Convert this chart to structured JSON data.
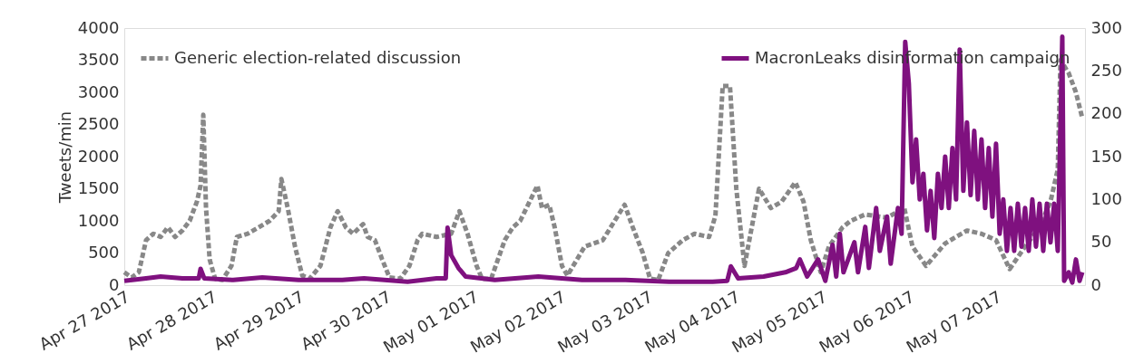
{
  "chart_data": {
    "type": "line",
    "ylabel": "Tweets/min",
    "xlim": [
      "2017-04-27T00:00",
      "2017-05-08T00:30"
    ],
    "xticks": [
      {
        "value": "2017-04-27T00:00",
        "label": "Apr 27 2017"
      },
      {
        "value": "2017-04-28T00:00",
        "label": "Apr 28 2017"
      },
      {
        "value": "2017-04-29T00:00",
        "label": "Apr 29 2017"
      },
      {
        "value": "2017-04-30T00:00",
        "label": "Apr 30 2017"
      },
      {
        "value": "2017-05-01T00:00",
        "label": "May 01 2017"
      },
      {
        "value": "2017-05-02T00:00",
        "label": "May 02 2017"
      },
      {
        "value": "2017-05-03T00:00",
        "label": "May 03 2017"
      },
      {
        "value": "2017-05-04T00:00",
        "label": "May 04 2017"
      },
      {
        "value": "2017-05-05T00:00",
        "label": "May 05 2017"
      },
      {
        "value": "2017-05-06T00:00",
        "label": "May 06 2017"
      },
      {
        "value": "2017-05-07T00:00",
        "label": "May 07 2017"
      }
    ],
    "ylim": [
      0,
      4000
    ],
    "yticks": [
      0,
      500,
      1000,
      1500,
      2000,
      2500,
      3000,
      3500,
      4000
    ],
    "y2lim": [
      0,
      300
    ],
    "y2ticks": [
      0,
      50,
      100,
      150,
      200,
      250,
      300
    ],
    "grid": false,
    "legend": "top",
    "marker": "none",
    "series": [
      {
        "name": "Generic election-related discussion",
        "color": "#888888",
        "line_style": "dashed",
        "x": [
          "2017-04-27T00:00",
          "2017-04-27T02:00",
          "2017-04-27T04:00",
          "2017-04-27T06:00",
          "2017-04-27T08:00",
          "2017-04-27T10:00",
          "2017-04-27T12:00",
          "2017-04-27T14:00",
          "2017-04-27T16:00",
          "2017-04-27T18:00",
          "2017-04-27T20:00",
          "2017-04-27T21:00",
          "2017-04-27T21:45",
          "2017-04-27T22:30",
          "2017-04-27T23:30",
          "2017-04-28T01:00",
          "2017-04-28T03:00",
          "2017-04-28T05:30",
          "2017-04-28T07:00",
          "2017-04-28T10:00",
          "2017-04-28T13:00",
          "2017-04-28T16:00",
          "2017-04-28T18:30",
          "2017-04-28T19:15",
          "2017-04-28T21:00",
          "2017-04-28T23:00",
          "2017-04-29T01:00",
          "2017-04-29T03:00",
          "2017-04-29T06:00",
          "2017-04-29T08:45",
          "2017-04-29T10:45",
          "2017-04-29T13:00",
          "2017-04-29T15:00",
          "2017-04-29T17:45",
          "2017-04-29T19:00",
          "2017-04-29T21:00",
          "2017-04-29T23:00",
          "2017-04-30T01:00",
          "2017-04-30T04:00",
          "2017-04-30T06:30",
          "2017-04-30T08:45",
          "2017-04-30T10:00",
          "2017-04-30T14:00",
          "2017-04-30T18:00",
          "2017-04-30T20:15",
          "2017-04-30T22:30",
          "2017-05-01T01:00",
          "2017-05-01T02:30",
          "2017-05-01T05:00",
          "2017-05-01T08:45",
          "2017-05-01T11:00",
          "2017-05-01T13:00",
          "2017-05-01T17:45",
          "2017-05-01T19:00",
          "2017-05-01T21:00",
          "2017-05-01T22:30",
          "2017-05-02T00:30",
          "2017-05-02T02:00",
          "2017-05-02T06:45",
          "2017-05-02T11:45",
          "2017-05-02T15:00",
          "2017-05-02T17:45",
          "2017-05-02T20:00",
          "2017-05-02T22:45",
          "2017-05-03T00:45",
          "2017-05-03T03:00",
          "2017-05-03T05:45",
          "2017-05-03T09:45",
          "2017-05-03T13:00",
          "2017-05-03T17:00",
          "2017-05-03T18:45",
          "2017-05-03T20:45",
          "2017-05-03T22:45",
          "2017-05-04T00:30",
          "2017-05-04T02:45",
          "2017-05-04T06:45",
          "2017-05-04T10:00",
          "2017-05-04T13:00",
          "2017-05-04T16:45",
          "2017-05-04T19:00",
          "2017-05-04T21:00",
          "2017-05-04T23:45",
          "2017-05-05T02:00",
          "2017-05-05T05:45",
          "2017-05-05T08:00",
          "2017-05-05T12:00",
          "2017-05-05T18:00",
          "2017-05-05T22:45",
          "2017-05-06T01:00",
          "2017-05-06T04:45",
          "2017-05-06T10:00",
          "2017-05-06T16:00",
          "2017-05-06T20:00",
          "2017-05-07T00:00",
          "2017-05-07T03:45",
          "2017-05-07T08:00",
          "2017-05-07T12:00",
          "2017-05-07T15:00",
          "2017-05-07T17:00",
          "2017-05-07T17:45",
          "2017-05-07T20:00",
          "2017-05-07T22:00",
          "2017-05-07T23:45"
        ],
        "values": [
          200,
          120,
          200,
          700,
          800,
          750,
          900,
          750,
          850,
          1000,
          1300,
          1550,
          2650,
          1200,
          400,
          100,
          80,
          300,
          750,
          800,
          900,
          1000,
          1150,
          1650,
          1200,
          600,
          150,
          100,
          300,
          900,
          1150,
          900,
          800,
          950,
          750,
          700,
          400,
          120,
          100,
          300,
          700,
          800,
          750,
          800,
          1150,
          800,
          300,
          100,
          100,
          700,
          900,
          1000,
          1550,
          1200,
          1250,
          900,
          300,
          150,
          600,
          700,
          1000,
          1250,
          900,
          500,
          100,
          80,
          500,
          700,
          800,
          750,
          1080,
          3100,
          3100,
          1500,
          300,
          1500,
          1200,
          1300,
          1600,
          1300,
          700,
          200,
          600,
          900,
          1000,
          1100,
          1050,
          1200,
          600,
          300,
          650,
          850,
          800,
          700,
          250,
          600,
          900,
          1300,
          1800,
          3500,
          3300,
          3000,
          2600
        ]
      },
      {
        "name": "MacronLeaks disinformation campaign",
        "color": "#7f117f",
        "line_style": "solid",
        "axis": "y2",
        "x": [
          "2017-04-27T00:00",
          "2017-04-27T06:00",
          "2017-04-27T10:00",
          "2017-04-27T16:00",
          "2017-04-27T20:30",
          "2017-04-27T21:00",
          "2017-04-27T22:00",
          "2017-04-28T06:00",
          "2017-04-28T14:00",
          "2017-04-29T00:00",
          "2017-04-29T12:00",
          "2017-04-29T18:00",
          "2017-04-30T06:00",
          "2017-04-30T14:00",
          "2017-04-30T16:30",
          "2017-04-30T17:00",
          "2017-04-30T18:00",
          "2017-04-30T20:00",
          "2017-04-30T22:00",
          "2017-05-01T06:00",
          "2017-05-01T18:00",
          "2017-05-02T06:00",
          "2017-05-02T18:00",
          "2017-05-03T06:00",
          "2017-05-03T18:00",
          "2017-05-03T22:00",
          "2017-05-03T23:00",
          "2017-05-04T01:00",
          "2017-05-04T08:00",
          "2017-05-04T14:00",
          "2017-05-04T17:00",
          "2017-05-04T18:00",
          "2017-05-04T20:00",
          "2017-05-04T23:00",
          "2017-05-05T01:00",
          "2017-05-05T03:00",
          "2017-05-05T04:00",
          "2017-05-05T05:00",
          "2017-05-05T06:00",
          "2017-05-05T09:00",
          "2017-05-05T10:00",
          "2017-05-05T12:00",
          "2017-05-05T13:00",
          "2017-05-05T15:00",
          "2017-05-05T16:00",
          "2017-05-05T18:00",
          "2017-05-05T19:00",
          "2017-05-05T21:00",
          "2017-05-05T22:00",
          "2017-05-05T23:00",
          "2017-05-06T00:00",
          "2017-05-06T01:00",
          "2017-05-06T02:00",
          "2017-05-06T03:00",
          "2017-05-06T04:00",
          "2017-05-06T05:00",
          "2017-05-06T06:00",
          "2017-05-06T07:00",
          "2017-05-06T08:00",
          "2017-05-06T09:00",
          "2017-05-06T10:00",
          "2017-05-06T11:00",
          "2017-05-06T12:00",
          "2017-05-06T13:00",
          "2017-05-06T14:00",
          "2017-05-06T15:00",
          "2017-05-06T16:00",
          "2017-05-06T17:00",
          "2017-05-06T18:00",
          "2017-05-06T19:00",
          "2017-05-06T20:00",
          "2017-05-06T21:00",
          "2017-05-06T22:00",
          "2017-05-06T23:00",
          "2017-05-07T00:00",
          "2017-05-07T01:00",
          "2017-05-07T02:00",
          "2017-05-07T03:00",
          "2017-05-07T04:00",
          "2017-05-07T05:00",
          "2017-05-07T06:00",
          "2017-05-07T07:00",
          "2017-05-07T08:00",
          "2017-05-07T09:00",
          "2017-05-07T10:00",
          "2017-05-07T11:00",
          "2017-05-07T12:00",
          "2017-05-07T13:00",
          "2017-05-07T14:00",
          "2017-05-07T15:00",
          "2017-05-07T16:00",
          "2017-05-07T17:00",
          "2017-05-07T18:15",
          "2017-05-07T18:45",
          "2017-05-07T20:00",
          "2017-05-07T21:00",
          "2017-05-07T22:00",
          "2017-05-07T23:00",
          "2017-05-07T23:45"
        ],
        "values": [
          5,
          8,
          10,
          8,
          8,
          19,
          8,
          6,
          9,
          6,
          6,
          8,
          4,
          8,
          8,
          67,
          35,
          20,
          10,
          6,
          10,
          6,
          6,
          4,
          4,
          5,
          22,
          8,
          10,
          15,
          20,
          30,
          10,
          30,
          5,
          47,
          10,
          60,
          15,
          50,
          15,
          68,
          20,
          90,
          40,
          80,
          25,
          90,
          60,
          284,
          235,
          120,
          170,
          100,
          130,
          64,
          110,
          55,
          130,
          90,
          150,
          90,
          160,
          100,
          275,
          110,
          190,
          105,
          180,
          100,
          170,
          90,
          160,
          80,
          165,
          60,
          100,
          40,
          90,
          40,
          95,
          45,
          90,
          40,
          100,
          45,
          95,
          40,
          95,
          50,
          95,
          40,
          290,
          5,
          15,
          3,
          30,
          5,
          15
        ]
      }
    ]
  }
}
